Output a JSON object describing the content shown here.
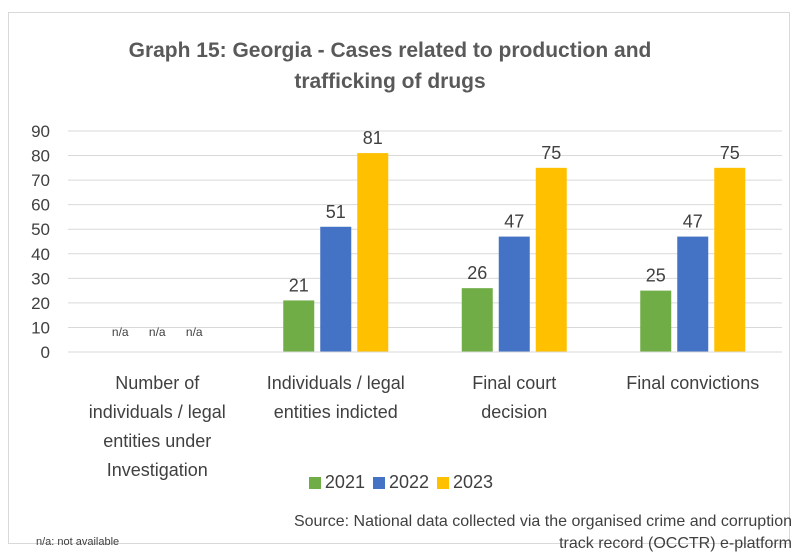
{
  "chart_data": {
    "type": "bar",
    "title": "Graph 15: Georgia - Cases related to production and trafficking of drugs",
    "categories": [
      "Number of individuals / legal entities under Investigation",
      "Individuals / legal entities indicted",
      "Final court decision",
      "Final convictions"
    ],
    "category_lines": [
      [
        "Number of",
        "individuals / legal",
        "entities under",
        "Investigation"
      ],
      [
        "Individuals / legal",
        "entities indicted"
      ],
      [
        "Final court",
        "decision"
      ],
      [
        "Final convictions"
      ]
    ],
    "series": [
      {
        "name": "2021",
        "color": "#70ad47",
        "values": [
          null,
          21,
          26,
          25
        ],
        "labels": [
          "n/a",
          "21",
          "26",
          "25"
        ]
      },
      {
        "name": "2022",
        "color": "#4472c4",
        "values": [
          null,
          51,
          47,
          47
        ],
        "labels": [
          "n/a",
          "51",
          "47",
          "47"
        ]
      },
      {
        "name": "2023",
        "color": "#ffc000",
        "values": [
          null,
          81,
          75,
          75
        ],
        "labels": [
          "n/a",
          "81",
          "75",
          "75"
        ]
      }
    ],
    "ylim": [
      0,
      90
    ],
    "yticks": [
      0,
      10,
      20,
      30,
      40,
      50,
      60,
      70,
      80,
      90
    ],
    "grid": true,
    "legend_position": "bottom"
  },
  "footnote": "n/a: not available",
  "source": "Source: National data collected via the organised crime and corruption track record (OCCTR) e-platform"
}
